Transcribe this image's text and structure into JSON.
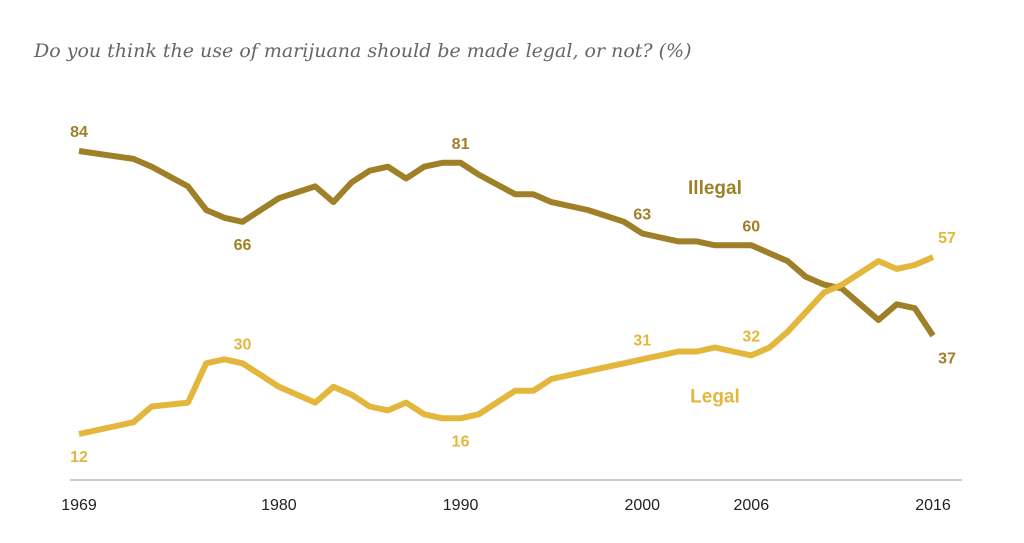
{
  "chart_data": {
    "type": "line",
    "title": "Do you think the use of marijuana should be made legal, or not? (%)",
    "xlabel": "",
    "ylabel": "",
    "xlim": [
      1969,
      2016
    ],
    "ylim": [
      0,
      100
    ],
    "x_ticks": [
      "1969",
      "1980",
      "1990",
      "2000",
      "2006",
      "2016"
    ],
    "colors": {
      "illegal": "#9f8028",
      "legal": "#e3b73c",
      "axis": "#bbbbbb"
    },
    "series": [
      {
        "name": "Illegal",
        "key": "illegal",
        "x": [
          1969,
          1972,
          1973,
          1975,
          1976,
          1977,
          1978,
          1980,
          1982,
          1983,
          1984,
          1985,
          1986,
          1987,
          1988,
          1989,
          1990,
          1991,
          1993,
          1994,
          1995,
          1997,
          1999,
          2000,
          2001,
          2002,
          2003,
          2004,
          2005,
          2006,
          2007,
          2008,
          2009,
          2010,
          2011,
          2012,
          2013,
          2014,
          2015,
          2016
        ],
        "values": [
          84,
          82,
          80,
          75,
          69,
          67,
          66,
          72,
          75,
          71,
          76,
          79,
          80,
          77,
          80,
          81,
          81,
          78,
          73,
          73,
          71,
          69,
          66,
          63,
          62,
          61,
          61,
          60,
          60,
          60,
          58,
          56,
          52,
          50,
          49,
          45,
          41,
          45,
          44,
          37
        ]
      },
      {
        "name": "Legal",
        "key": "legal",
        "x": [
          1969,
          1972,
          1973,
          1975,
          1976,
          1977,
          1978,
          1980,
          1982,
          1983,
          1984,
          1985,
          1986,
          1987,
          1988,
          1989,
          1990,
          1991,
          1993,
          1994,
          1995,
          1997,
          1999,
          2000,
          2001,
          2002,
          2003,
          2004,
          2005,
          2006,
          2007,
          2008,
          2009,
          2010,
          2011,
          2012,
          2013,
          2014,
          2015,
          2016
        ],
        "values": [
          12,
          15,
          19,
          20,
          30,
          31,
          30,
          24,
          20,
          24,
          22,
          19,
          18,
          20,
          17,
          16,
          16,
          17,
          23,
          23,
          26,
          28,
          30,
          31,
          32,
          33,
          33,
          34,
          33,
          32,
          34,
          38,
          43,
          48,
          50,
          53,
          56,
          54,
          55,
          57
        ]
      }
    ],
    "annotations": [
      {
        "series": "illegal",
        "x": 1969,
        "text": "84",
        "pos": "above"
      },
      {
        "series": "illegal",
        "x": 1978,
        "text": "66",
        "pos": "below"
      },
      {
        "series": "illegal",
        "x": 1990,
        "text": "81",
        "pos": "above"
      },
      {
        "series": "illegal",
        "x": 2000,
        "text": "63",
        "pos": "above"
      },
      {
        "series": "illegal",
        "x": 2006,
        "text": "60",
        "pos": "above"
      },
      {
        "series": "illegal",
        "x": 2016,
        "text": "37",
        "pos": "below"
      },
      {
        "series": "legal",
        "x": 1969,
        "text": "12",
        "pos": "below"
      },
      {
        "series": "legal",
        "x": 1978,
        "text": "30",
        "pos": "above"
      },
      {
        "series": "legal",
        "x": 1990,
        "text": "16",
        "pos": "below"
      },
      {
        "series": "legal",
        "x": 2000,
        "text": "31",
        "pos": "above"
      },
      {
        "series": "legal",
        "x": 2006,
        "text": "32",
        "pos": "above"
      },
      {
        "series": "legal",
        "x": 2016,
        "text": "57",
        "pos": "above"
      }
    ],
    "series_labels": [
      {
        "series": "illegal",
        "text": "Illegal",
        "x": 2004,
        "y": 73
      },
      {
        "series": "legal",
        "text": "Legal",
        "x": 2004,
        "y": 20
      }
    ]
  }
}
